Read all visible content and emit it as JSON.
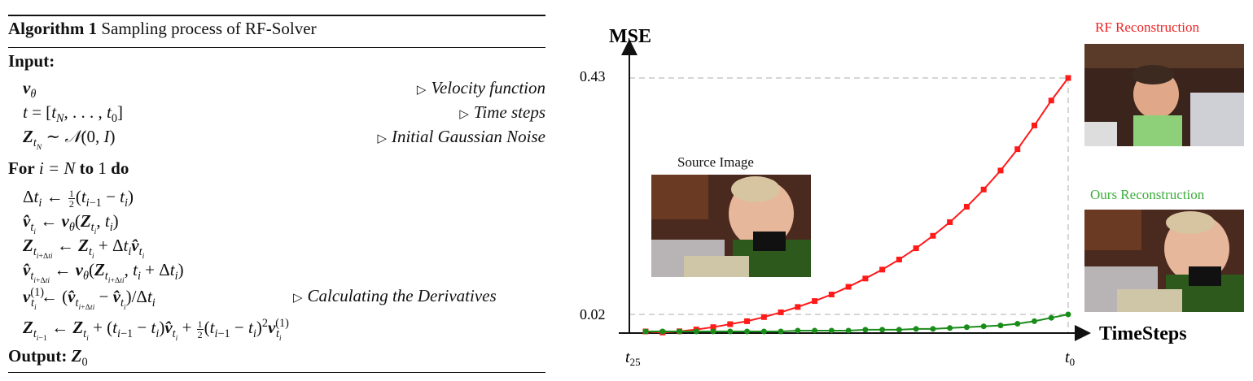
{
  "algorithm": {
    "title_bold": "Algorithm 1",
    "title_rest": "Sampling process of RF-Solver",
    "input_label": "Input:",
    "inputs": [
      {
        "comment": "Velocity function"
      },
      {
        "comment": "Time steps"
      },
      {
        "comment": "Initial Gaussian Noise"
      }
    ],
    "loop_for": "For",
    "loop_range_math": "i = N",
    "loop_to": "to",
    "loop_end": "1",
    "loop_do": "do",
    "derivative_comment": "Calculating the Derivatives",
    "output_label": "Output:",
    "output_math": "Z",
    "output_sub": "0"
  },
  "figure": {
    "source_caption": "Source Image",
    "rf_caption": "RF Reconstruction",
    "ours_caption": "Ours Reconstruction",
    "colors": {
      "rf": "#ff1a1a",
      "ours": "#1a8c1a",
      "ours_caption": "#3cae3c",
      "rf_caption": "#ee2222"
    },
    "chart_data": {
      "type": "line",
      "ylabel": "MSE",
      "xlabel": "TimeSteps",
      "x_tick_labels": [
        "t25",
        "t0"
      ],
      "x_tick_label_parts": [
        {
          "base": "t",
          "sub": "25"
        },
        {
          "base": "t",
          "sub": "0"
        }
      ],
      "y_tick_labels": [
        "0.43",
        "0.02"
      ],
      "steps": 26,
      "series": [
        {
          "name": "RF Reconstruction",
          "color": "#ff1a1a",
          "marker": "square",
          "values": [
            0.0,
            0.001,
            0.003,
            0.006,
            0.01,
            0.015,
            0.02,
            0.027,
            0.035,
            0.044,
            0.054,
            0.065,
            0.078,
            0.092,
            0.107,
            0.124,
            0.143,
            0.164,
            0.187,
            0.213,
            0.242,
            0.274,
            0.31,
            0.35,
            0.392,
            0.43
          ]
        },
        {
          "name": "Ours Reconstruction",
          "color": "#1a8c1a",
          "marker": "circle",
          "values": [
            0.0,
            0.0,
            0.0,
            0.0,
            0.0,
            0.0,
            0.0,
            0.0,
            0.0,
            0.001,
            0.001,
            0.001,
            0.001,
            0.002,
            0.002,
            0.002,
            0.003,
            0.003,
            0.004,
            0.005,
            0.006,
            0.007,
            0.009,
            0.012,
            0.016,
            0.02
          ]
        }
      ]
    }
  }
}
